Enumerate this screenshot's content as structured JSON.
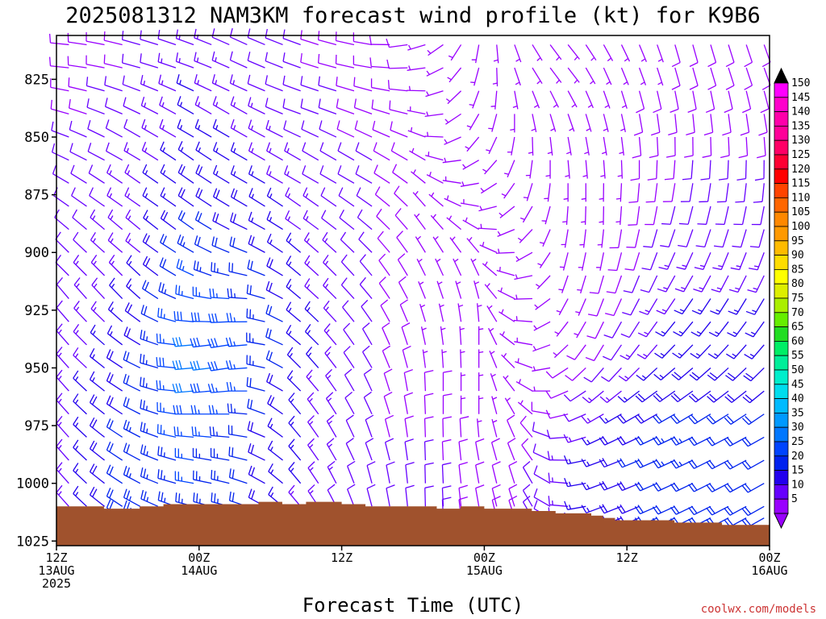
{
  "chart_data": {
    "type": "wind-barb-profile",
    "title": "2025081312 NAM3KM forecast wind profile (kt) for K9B6",
    "xlabel": "Forecast Time (UTC)",
    "credit": "coolwx.com/models",
    "y_axis": {
      "reversed": true,
      "range": [
        806,
        1027
      ],
      "ticks": [
        "825",
        "850",
        "875",
        "900",
        "925",
        "950",
        "975",
        "1000",
        "1025"
      ]
    },
    "x_axis": {
      "range_hours": [
        0,
        60
      ],
      "ticks": [
        {
          "hour": 0,
          "lines": [
            "12Z",
            "13AUG",
            "2025"
          ]
        },
        {
          "hour": 12,
          "lines": [
            "00Z",
            "14AUG"
          ]
        },
        {
          "hour": 24,
          "lines": [
            "12Z"
          ]
        },
        {
          "hour": 36,
          "lines": [
            "00Z",
            "15AUG"
          ]
        },
        {
          "hour": 48,
          "lines": [
            "12Z"
          ]
        },
        {
          "hour": 60,
          "lines": [
            "00Z",
            "16AUG"
          ]
        }
      ]
    },
    "surface_pressure": {
      "hours": [
        0,
        4,
        7,
        9,
        12,
        15,
        17,
        19,
        21,
        24,
        26,
        28,
        30,
        32,
        34,
        36,
        38,
        40,
        42,
        44,
        45,
        46,
        47,
        48,
        50,
        52,
        54,
        56,
        58,
        60
      ],
      "values": [
        1010,
        1011,
        1010,
        1009,
        1009,
        1009,
        1008,
        1009,
        1008,
        1009,
        1010,
        1010,
        1010,
        1011,
        1010,
        1011,
        1011,
        1012,
        1013,
        1013,
        1014,
        1015,
        1016,
        1016,
        1016,
        1017,
        1017,
        1018,
        1018,
        1019
      ]
    },
    "barbs": {
      "hour_step": 1.5,
      "levels": [
        810,
        820,
        830,
        840,
        850,
        860,
        870,
        880,
        890,
        900,
        910,
        920,
        930,
        940,
        950,
        960,
        970,
        980,
        990,
        1000,
        1010,
        1015
      ],
      "keyframes": [
        {
          "hour": 0,
          "dir": [
            275,
            275,
            280,
            285,
            290,
            295,
            300,
            305,
            310,
            315,
            315,
            320,
            320,
            320,
            320,
            320,
            320,
            320,
            320,
            320,
            320,
            320
          ],
          "spd": [
            8,
            8,
            9,
            9,
            10,
            10,
            10,
            11,
            11,
            11,
            12,
            12,
            12,
            12,
            12,
            13,
            13,
            13,
            14,
            14,
            14,
            14
          ]
        },
        {
          "hour": 6,
          "dir": [
            285,
            285,
            290,
            295,
            300,
            300,
            305,
            305,
            310,
            310,
            315,
            315,
            310,
            305,
            300,
            300,
            300,
            300,
            300,
            300,
            300,
            300
          ],
          "spd": [
            10,
            10,
            11,
            11,
            12,
            12,
            13,
            13,
            14,
            14,
            15,
            16,
            17,
            18,
            19,
            20,
            21,
            22,
            22,
            23,
            23,
            23
          ]
        },
        {
          "hour": 11,
          "dir": [
            290,
            290,
            295,
            300,
            300,
            305,
            305,
            305,
            305,
            300,
            295,
            285,
            275,
            265,
            265,
            265,
            270,
            275,
            280,
            280,
            285,
            285
          ],
          "spd": [
            13,
            14,
            15,
            15,
            16,
            17,
            18,
            19,
            21,
            23,
            25,
            27,
            29,
            31,
            32,
            30,
            28,
            27,
            26,
            25,
            24,
            24
          ]
        },
        {
          "hour": 15,
          "dir": [
            295,
            295,
            295,
            300,
            300,
            300,
            300,
            300,
            295,
            290,
            280,
            270,
            265,
            260,
            260,
            265,
            270,
            275,
            280,
            285,
            285,
            285
          ],
          "spd": [
            12,
            12,
            13,
            14,
            15,
            16,
            17,
            18,
            19,
            21,
            23,
            25,
            27,
            28,
            28,
            26,
            24,
            23,
            22,
            22,
            22,
            22
          ]
        },
        {
          "hour": 20,
          "dir": [
            290,
            290,
            290,
            290,
            295,
            300,
            300,
            305,
            305,
            310,
            310,
            310,
            310,
            310,
            315,
            315,
            320,
            320,
            320,
            320,
            320,
            320
          ],
          "spd": [
            10,
            10,
            11,
            11,
            12,
            13,
            13,
            14,
            14,
            15,
            16,
            16,
            17,
            17,
            17,
            16,
            16,
            15,
            15,
            15,
            14,
            14
          ]
        },
        {
          "hour": 26,
          "dir": [
            280,
            280,
            285,
            290,
            295,
            300,
            300,
            305,
            310,
            315,
            320,
            320,
            325,
            330,
            330,
            335,
            335,
            340,
            340,
            345,
            345,
            345
          ],
          "spd": [
            9,
            9,
            9,
            9,
            9,
            10,
            10,
            10,
            10,
            10,
            10,
            10,
            10,
            10,
            10,
            10,
            10,
            10,
            10,
            10,
            10,
            10
          ]
        },
        {
          "hour": 31,
          "dir": [
            250,
            260,
            270,
            280,
            290,
            300,
            310,
            320,
            325,
            330,
            335,
            340,
            345,
            350,
            355,
            360,
            360,
            360,
            360,
            360,
            360,
            360
          ],
          "spd": [
            7,
            7,
            7,
            7,
            7,
            7,
            7,
            7,
            7,
            7,
            7,
            7,
            7,
            7,
            7,
            8,
            8,
            9,
            10,
            11,
            11,
            11
          ]
        },
        {
          "hour": 35,
          "dir": [
            190,
            195,
            200,
            210,
            220,
            240,
            260,
            280,
            300,
            320,
            335,
            345,
            355,
            360,
            360,
            360,
            360,
            355,
            350,
            350,
            350,
            350
          ],
          "spd": [
            5,
            5,
            5,
            5,
            5,
            5,
            5,
            5,
            5,
            5,
            5,
            5,
            6,
            6,
            6,
            6,
            6,
            7,
            8,
            9,
            9,
            9
          ]
        },
        {
          "hour": 39,
          "dir": [
            150,
            150,
            160,
            170,
            180,
            190,
            200,
            215,
            230,
            250,
            270,
            280,
            285,
            290,
            300,
            310,
            320,
            330,
            335,
            340,
            340,
            340
          ],
          "spd": [
            5,
            5,
            5,
            5,
            5,
            5,
            5,
            5,
            5,
            5,
            5,
            5,
            5,
            5,
            5,
            6,
            7,
            8,
            9,
            10,
            10,
            10
          ]
        },
        {
          "hour": 42,
          "dir": [
            140,
            140,
            150,
            160,
            170,
            175,
            180,
            185,
            190,
            195,
            200,
            210,
            220,
            230,
            240,
            250,
            260,
            270,
            275,
            280,
            280,
            280
          ],
          "spd": [
            5,
            5,
            5,
            5,
            5,
            5,
            5,
            5,
            5,
            5,
            5,
            5,
            5,
            6,
            7,
            8,
            9,
            11,
            12,
            12,
            12,
            12
          ]
        },
        {
          "hour": 45,
          "dir": [
            150,
            155,
            160,
            165,
            170,
            175,
            180,
            180,
            185,
            190,
            195,
            200,
            205,
            210,
            220,
            230,
            240,
            245,
            250,
            250,
            250,
            250
          ],
          "spd": [
            6,
            6,
            6,
            6,
            6,
            6,
            6,
            6,
            6,
            6,
            7,
            7,
            8,
            9,
            10,
            12,
            14,
            16,
            17,
            17,
            17,
            17
          ]
        },
        {
          "hour": 52,
          "dir": [
            165,
            165,
            170,
            175,
            180,
            185,
            190,
            195,
            200,
            205,
            210,
            215,
            220,
            225,
            230,
            235,
            240,
            245,
            245,
            245,
            245,
            245
          ],
          "spd": [
            8,
            8,
            9,
            9,
            9,
            10,
            10,
            11,
            12,
            13,
            14,
            15,
            16,
            17,
            18,
            20,
            22,
            23,
            23,
            22,
            22,
            22
          ]
        },
        {
          "hour": 60,
          "dir": [
            160,
            160,
            165,
            170,
            175,
            180,
            185,
            190,
            195,
            200,
            205,
            210,
            215,
            220,
            225,
            230,
            235,
            240,
            240,
            240,
            240,
            240
          ],
          "spd": [
            8,
            9,
            9,
            10,
            10,
            11,
            11,
            12,
            12,
            13,
            14,
            15,
            16,
            17,
            18,
            19,
            20,
            21,
            21,
            21,
            21,
            21
          ]
        }
      ]
    },
    "colorbar": {
      "labels": [
        "5",
        "10",
        "15",
        "20",
        "25",
        "30",
        "35",
        "40",
        "45",
        "50",
        "55",
        "60",
        "65",
        "70",
        "75",
        "80",
        "85",
        "90",
        "95",
        "100",
        "105",
        "110",
        "115",
        "120",
        "125",
        "130",
        "135",
        "140",
        "145",
        "150"
      ],
      "colors": [
        "#9900ff",
        "#6600ff",
        "#2200ee",
        "#0022ee",
        "#0044ff",
        "#0077ff",
        "#0099ff",
        "#00bbff",
        "#00ddee",
        "#00eecc",
        "#00ee99",
        "#00ee66",
        "#22dd22",
        "#66ee00",
        "#aaee00",
        "#ddee00",
        "#ffff00",
        "#ffdd00",
        "#ffbb00",
        "#ff9900",
        "#ff8800",
        "#ff6600",
        "#ff4400",
        "#ff0000",
        "#ff0033",
        "#ff0066",
        "#ff0099",
        "#ff00aa",
        "#ff00cc",
        "#ff00ff"
      ],
      "over_color": "#000000",
      "under_color": "#9900ff"
    },
    "ground_color": "#a0522d"
  }
}
